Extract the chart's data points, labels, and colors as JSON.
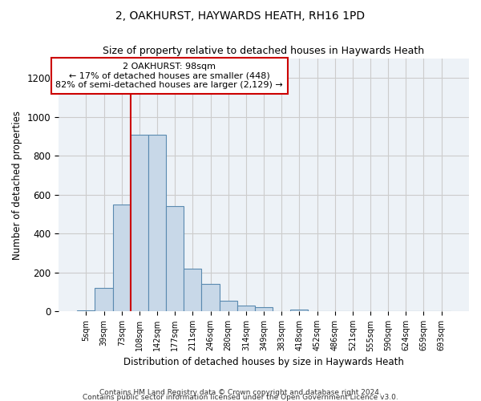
{
  "title": "2, OAKHURST, HAYWARDS HEATH, RH16 1PD",
  "subtitle": "Size of property relative to detached houses in Haywards Heath",
  "xlabel": "Distribution of detached houses by size in Haywards Heath",
  "ylabel": "Number of detached properties",
  "bar_color": "#c8d8e8",
  "bar_edge_color": "#5a8ab0",
  "categories": [
    "5sqm",
    "39sqm",
    "73sqm",
    "108sqm",
    "142sqm",
    "177sqm",
    "211sqm",
    "246sqm",
    "280sqm",
    "314sqm",
    "349sqm",
    "383sqm",
    "418sqm",
    "452sqm",
    "486sqm",
    "521sqm",
    "555sqm",
    "590sqm",
    "624sqm",
    "659sqm",
    "693sqm"
  ],
  "values": [
    5,
    120,
    550,
    910,
    910,
    540,
    220,
    140,
    55,
    30,
    20,
    0,
    10,
    0,
    0,
    0,
    0,
    0,
    0,
    0,
    0
  ],
  "ylim": [
    0,
    1300
  ],
  "yticks": [
    0,
    200,
    400,
    600,
    800,
    1000,
    1200
  ],
  "vline_x": 2.5,
  "annotation_text": "2 OAKHURST: 98sqm\n← 17% of detached houses are smaller (448)\n82% of semi-detached houses are larger (2,129) →",
  "annotation_box_color": "#ffffff",
  "annotation_border_color": "#cc0000",
  "footer_line1": "Contains HM Land Registry data © Crown copyright and database right 2024.",
  "footer_line2": "Contains public sector information licensed under the Open Government Licence v3.0.",
  "vline_color": "#cc0000",
  "grid_color": "#cccccc",
  "background_color": "#edf2f7"
}
